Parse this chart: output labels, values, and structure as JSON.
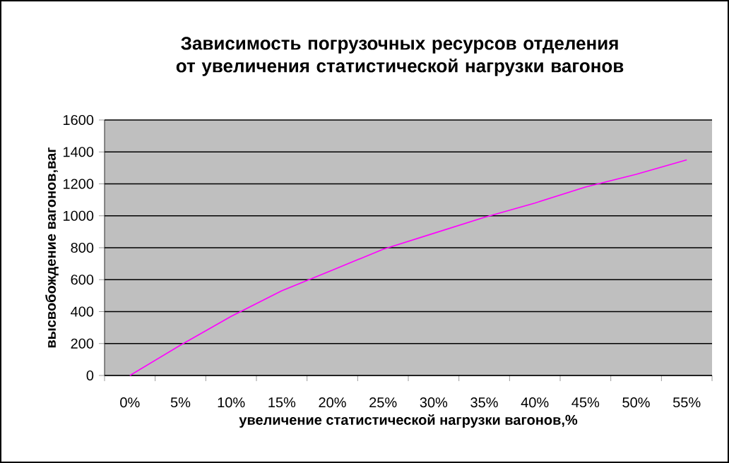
{
  "chart_data": {
    "type": "line",
    "title": "Зависимость погрузочных ресурсов отделения от увеличения статистической нагрузки вагонов",
    "xlabel": "увеличение статистической нагрузки вагонов,%",
    "ylabel": "высвобождение вагонов,ваг",
    "categories": [
      "0%",
      "5%",
      "10%",
      "15%",
      "20%",
      "25%",
      "30%",
      "35%",
      "40%",
      "45%",
      "50%",
      "55%"
    ],
    "series": [
      {
        "color": "#ff00ff",
        "values": [
          0,
          190,
          370,
          530,
          660,
          790,
          890,
          990,
          1080,
          1180,
          1260,
          1350
        ]
      }
    ],
    "ylim": [
      0,
      1600
    ],
    "yticks": [
      0,
      200,
      400,
      600,
      800,
      1000,
      1200,
      1400,
      1600
    ],
    "grid": "y",
    "marker": "none",
    "line_style": "solid"
  }
}
